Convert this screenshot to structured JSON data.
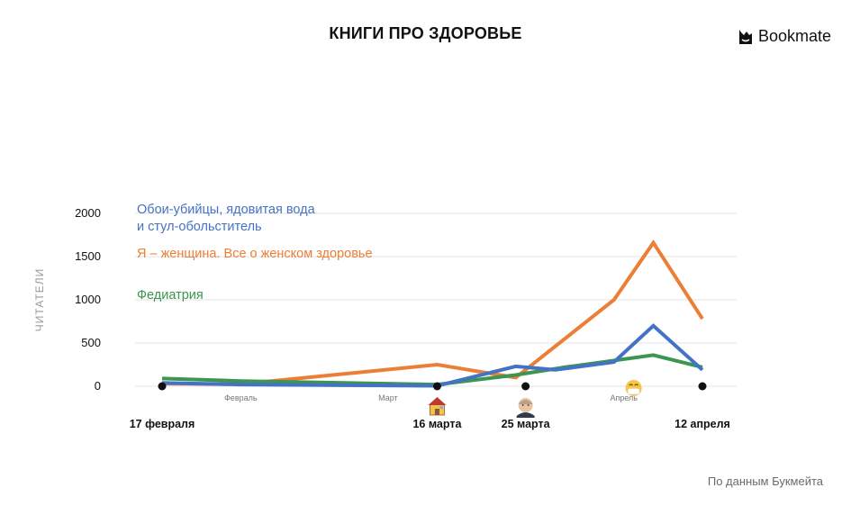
{
  "header": {
    "title": "КНИГИ ПРО ЗДОРОВЬЕ",
    "brand": "Bookmate",
    "source": "По данным Букмейта"
  },
  "chart_data": {
    "type": "line",
    "ylabel": "ЧИТАТЕЛИ",
    "xlabel": "",
    "ylim": [
      0,
      2000
    ],
    "yticks": [
      0,
      500,
      1000,
      1500,
      2000
    ],
    "grid": true,
    "legend_position": "top-left",
    "x_range": [
      "2020-02-17",
      "2020-04-12"
    ],
    "month_labels": [
      {
        "label": "Февраль",
        "date": "2020-02-25"
      },
      {
        "label": "Март",
        "date": "2020-03-11"
      },
      {
        "label": "Апрель",
        "date": "2020-04-04"
      }
    ],
    "events": [
      {
        "label": "17 февраля",
        "date": "2020-02-17",
        "icon": ""
      },
      {
        "label": "16 марта",
        "date": "2020-03-16",
        "icon": "house-icon"
      },
      {
        "label": "25 марта",
        "date": "2020-03-25",
        "icon": "face-icon"
      },
      {
        "label": "12 апреля",
        "date": "2020-04-12",
        "icon": ""
      }
    ],
    "extra_icons": [
      {
        "icon": "mask-face-icon",
        "date": "2020-04-05"
      }
    ],
    "series": [
      {
        "name": "Я – женщина. Все о женском здоровье",
        "color": "#EC7E35",
        "points": [
          [
            "2020-02-17",
            30
          ],
          [
            "2020-02-25",
            25
          ],
          [
            "2020-03-16",
            250
          ],
          [
            "2020-03-24",
            100
          ],
          [
            "2020-04-03",
            1000
          ],
          [
            "2020-04-07",
            1660
          ],
          [
            "2020-04-12",
            780
          ]
        ]
      },
      {
        "name": "Федиатрия",
        "color": "#3C9550",
        "points": [
          [
            "2020-02-17",
            90
          ],
          [
            "2020-02-25",
            60
          ],
          [
            "2020-03-16",
            20
          ],
          [
            "2020-03-24",
            130
          ],
          [
            "2020-03-29",
            220
          ],
          [
            "2020-04-07",
            360
          ],
          [
            "2020-04-12",
            220
          ]
        ]
      },
      {
        "name": "Обои-убийцы, ядовитая вода\nи стул-обольститель",
        "color": "#4472C4",
        "points": [
          [
            "2020-02-17",
            40
          ],
          [
            "2020-02-25",
            20
          ],
          [
            "2020-03-16",
            5
          ],
          [
            "2020-03-24",
            230
          ],
          [
            "2020-03-28",
            190
          ],
          [
            "2020-04-03",
            280
          ],
          [
            "2020-04-07",
            700
          ],
          [
            "2020-04-12",
            190
          ]
        ]
      }
    ],
    "legend_order": [
      2,
      0,
      1
    ]
  }
}
